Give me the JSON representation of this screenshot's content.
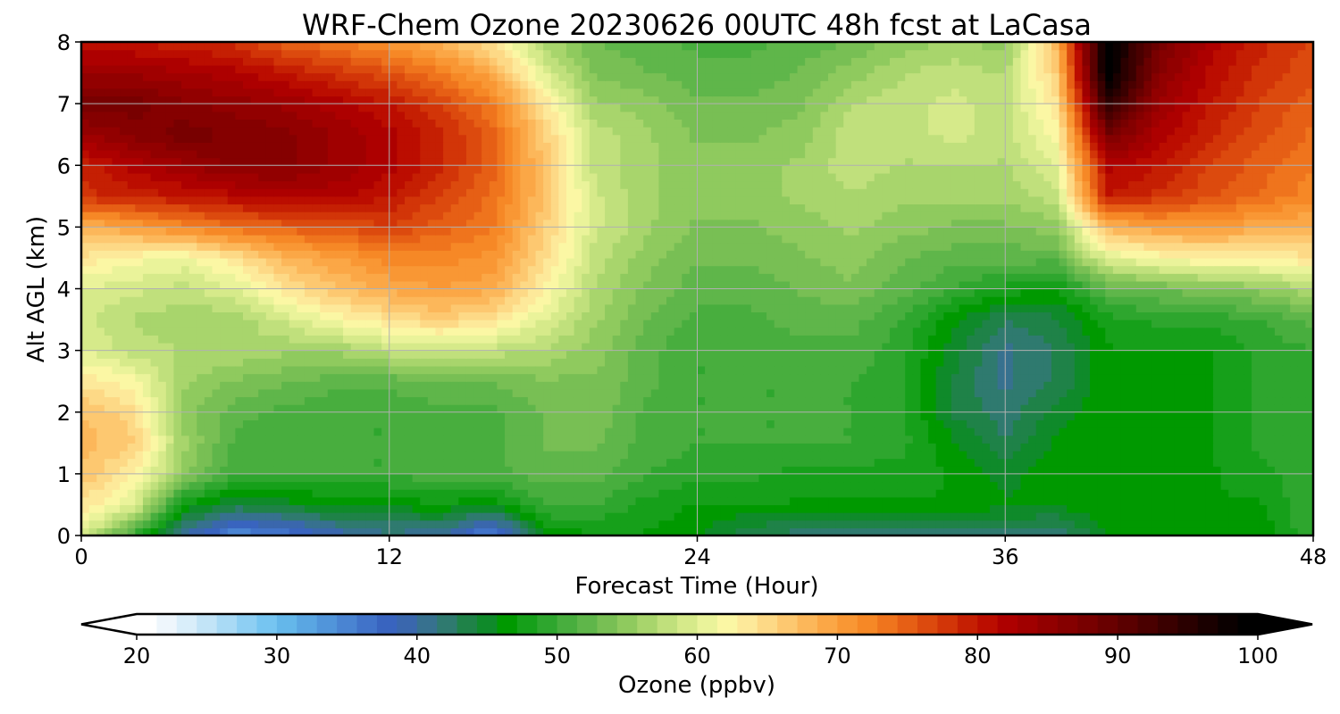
{
  "chart_data": {
    "type": "heatmap",
    "title": "WRF-Chem Ozone  20230626 00UTC 48h fcst at LaCasa",
    "xlabel": "Forecast Time (Hour)",
    "ylabel": "Alt AGL (km)",
    "xlim": [
      0,
      48
    ],
    "ylim": [
      0,
      8
    ],
    "x_ticks": [
      0,
      12,
      24,
      36,
      48
    ],
    "y_ticks": [
      0,
      1,
      2,
      3,
      4,
      5,
      6,
      7,
      8
    ],
    "grid": true,
    "x": [
      0,
      2,
      4,
      6,
      8,
      10,
      12,
      14,
      16,
      18,
      20,
      22,
      24,
      26,
      28,
      30,
      32,
      34,
      36,
      38,
      40,
      42,
      44,
      46,
      48
    ],
    "y": [
      0,
      0.5,
      1,
      1.5,
      2,
      2.5,
      3,
      3.5,
      4,
      4.5,
      5,
      5.5,
      6,
      6.5,
      7,
      7.5,
      8
    ],
    "z": [
      [
        60,
        50,
        40,
        34,
        36,
        39,
        41,
        40,
        34,
        46,
        47,
        47,
        46,
        43,
        42,
        42,
        42,
        42,
        42,
        41,
        46,
        46,
        46,
        46,
        50
      ],
      [
        64,
        60,
        47,
        44,
        45,
        46,
        46,
        47,
        46,
        50,
        50,
        48,
        47,
        47,
        47,
        47,
        47,
        47,
        46,
        46,
        47,
        47,
        47,
        47,
        50
      ],
      [
        67,
        63,
        55,
        50,
        50,
        50,
        50,
        51,
        51,
        52,
        52,
        50,
        49,
        49,
        48,
        48,
        48,
        47,
        45,
        47,
        47,
        47,
        47,
        48,
        50
      ],
      [
        68,
        66,
        56,
        51,
        50,
        50,
        50,
        51,
        51,
        53,
        53,
        51,
        50,
        50,
        50,
        50,
        49,
        46,
        43,
        46,
        47,
        47,
        47,
        49,
        50
      ],
      [
        67,
        65,
        55,
        52,
        51,
        50,
        50,
        51,
        51,
        53,
        54,
        51,
        50,
        50,
        50,
        50,
        49,
        44,
        42,
        45,
        47,
        47,
        47,
        49,
        50
      ],
      [
        64,
        62,
        56,
        54,
        53,
        52,
        52,
        53,
        53,
        54,
        54,
        52,
        50,
        50,
        50,
        50,
        49,
        44,
        41,
        43,
        47,
        47,
        47,
        49,
        50
      ],
      [
        60,
        58,
        57,
        57,
        56,
        56,
        58,
        58,
        58,
        57,
        55,
        52,
        50,
        50,
        51,
        51,
        49,
        45,
        41,
        43,
        47,
        47,
        47,
        49,
        50
      ],
      [
        59,
        57,
        56,
        56,
        59,
        62,
        64,
        66,
        64,
        60,
        56,
        53,
        51,
        51,
        52,
        52,
        50,
        46,
        43,
        44,
        48,
        49,
        49,
        50,
        52
      ],
      [
        60,
        59,
        58,
        60,
        64,
        67,
        69,
        70,
        69,
        63,
        57,
        54,
        52,
        52,
        53,
        54,
        52,
        50,
        48,
        47,
        52,
        53,
        54,
        55,
        57
      ],
      [
        64,
        62,
        61,
        64,
        68,
        70,
        72,
        72,
        71,
        65,
        58,
        55,
        53,
        53,
        54,
        55,
        53,
        52,
        52,
        52,
        60,
        62,
        63,
        63,
        64
      ],
      [
        68,
        70,
        72,
        74,
        75,
        76,
        77,
        75,
        73,
        66,
        59,
        56,
        54,
        54,
        55,
        56,
        55,
        54,
        54,
        55,
        68,
        70,
        70,
        69,
        68
      ],
      [
        78,
        79,
        80,
        81,
        82,
        82,
        80,
        77,
        74,
        67,
        59,
        56,
        55,
        55,
        56,
        57,
        56,
        56,
        56,
        58,
        80,
        78,
        76,
        74,
        72
      ],
      [
        79,
        82,
        84,
        86,
        86,
        84,
        82,
        79,
        75,
        67,
        58,
        56,
        55,
        55,
        56,
        58,
        57,
        57,
        57,
        60,
        82,
        80,
        77,
        75,
        73
      ],
      [
        84,
        86,
        88,
        87,
        86,
        84,
        82,
        79,
        75,
        66,
        58,
        56,
        54,
        54,
        55,
        58,
        58,
        59,
        58,
        62,
        88,
        82,
        79,
        76,
        74
      ],
      [
        88,
        88,
        86,
        85,
        84,
        82,
        80,
        77,
        73,
        64,
        56,
        55,
        53,
        53,
        54,
        57,
        58,
        59,
        58,
        64,
        95,
        84,
        80,
        77,
        75
      ],
      [
        84,
        84,
        83,
        82,
        80,
        78,
        76,
        73,
        69,
        60,
        54,
        53,
        52,
        52,
        53,
        55,
        57,
        58,
        57,
        66,
        100,
        86,
        81,
        78,
        76
      ],
      [
        80,
        80,
        79,
        78,
        75,
        73,
        71,
        68,
        64,
        57,
        53,
        52,
        51,
        51,
        52,
        53,
        55,
        56,
        55,
        68,
        100,
        88,
        82,
        79,
        77
      ]
    ],
    "colorbar": {
      "label": "Ozone  (ppbv)",
      "range": [
        20,
        100
      ],
      "ticks": [
        20,
        30,
        40,
        50,
        60,
        70,
        80,
        90,
        100
      ],
      "extend": "both",
      "extend_below_color": "#ffffff",
      "extend_above_color": "#000000",
      "colors": [
        "#ffffff",
        "#eef6fc",
        "#d9eefa",
        "#c2e4f7",
        "#a9daf5",
        "#8ecff3",
        "#76c5f1",
        "#64b7ea",
        "#5aa6e2",
        "#5195da",
        "#4a84d2",
        "#4173c9",
        "#3964bf",
        "#3a67ad",
        "#37718f",
        "#2f7a6f",
        "#1f8248",
        "#0f8a2a",
        "#009900",
        "#16a01a",
        "#2ea62e",
        "#48ae3e",
        "#5fb64a",
        "#78bf54",
        "#8fca5e",
        "#a8d56c",
        "#c0e07c",
        "#d6ea8a",
        "#eaf39a",
        "#fbf7a4",
        "#fde99a",
        "#fdd986",
        "#fdc870",
        "#fcb75a",
        "#fba746",
        "#f99734",
        "#f68826",
        "#ef741d",
        "#e65f15",
        "#dc4a0e",
        "#d23508",
        "#c51f03",
        "#bb0d00",
        "#ad0000",
        "#a00000",
        "#920000",
        "#850000",
        "#780000",
        "#690000",
        "#5a0000",
        "#4a0000",
        "#3a0000",
        "#2a0000",
        "#1a0000",
        "#0b0000",
        "#000000"
      ]
    }
  }
}
